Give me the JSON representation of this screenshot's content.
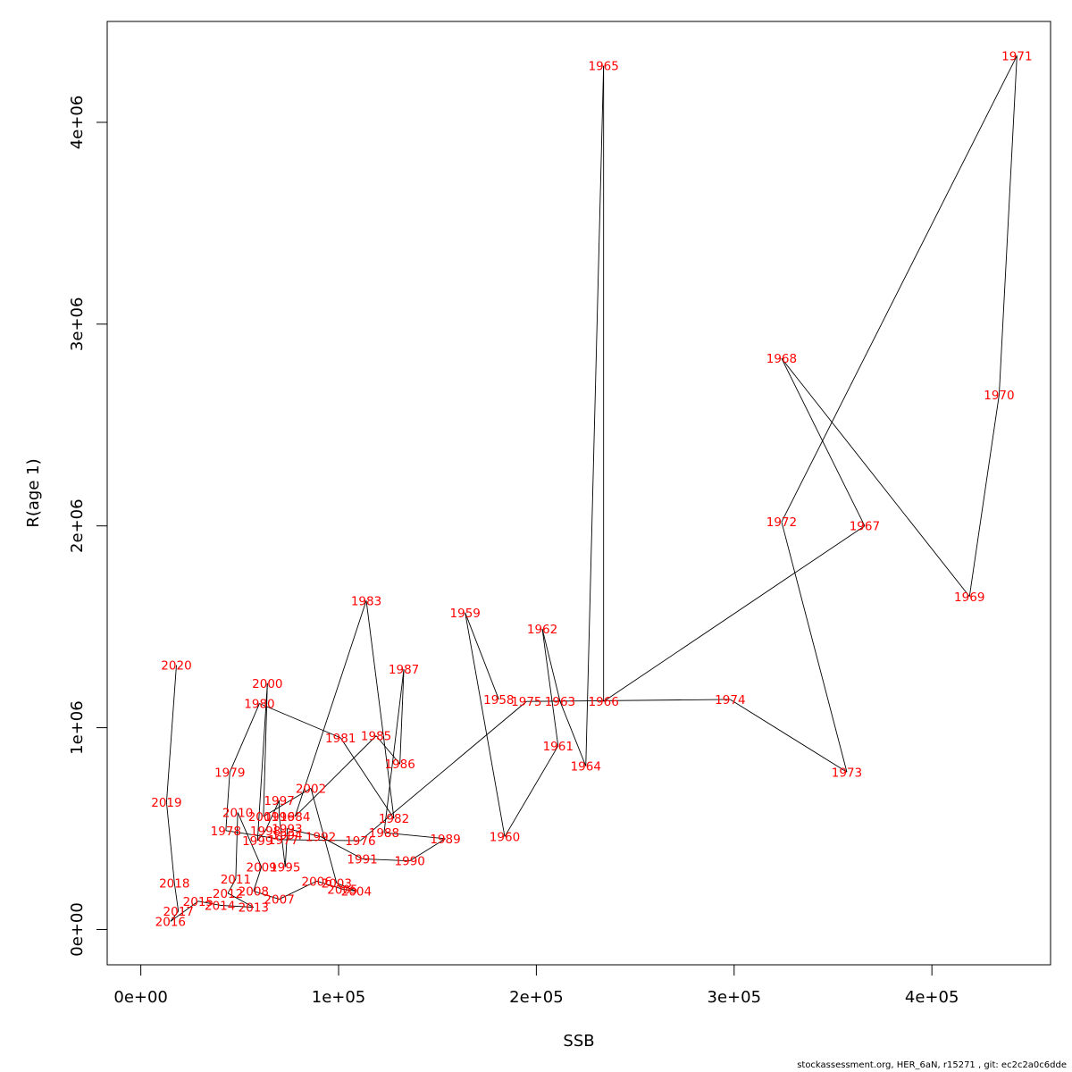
{
  "chart_data": {
    "type": "scatter",
    "xlabel": "SSB",
    "ylabel": "R(age 1)",
    "xlim": [
      -17000,
      460000
    ],
    "ylim": [
      -175000,
      4500000
    ],
    "x_ticks": [
      {
        "value": 0,
        "label": "0e+00"
      },
      {
        "value": 100000,
        "label": "1e+05"
      },
      {
        "value": 200000,
        "label": "2e+05"
      },
      {
        "value": 300000,
        "label": "3e+05"
      },
      {
        "value": 400000,
        "label": "4e+05"
      }
    ],
    "y_ticks": [
      {
        "value": 0,
        "label": "0e+00"
      },
      {
        "value": 1000000,
        "label": "1e+06"
      },
      {
        "value": 2000000,
        "label": "2e+06"
      },
      {
        "value": 3000000,
        "label": "3e+06"
      },
      {
        "value": 4000000,
        "label": "4e+06"
      }
    ],
    "line_color": "#000000",
    "label_color": "#ff0000",
    "points": [
      {
        "year": "1958",
        "ssb": 181000,
        "rec": 1140000
      },
      {
        "year": "1959",
        "ssb": 164000,
        "rec": 1570000
      },
      {
        "year": "1960",
        "ssb": 184000,
        "rec": 460000
      },
      {
        "year": "1961",
        "ssb": 211000,
        "rec": 910000
      },
      {
        "year": "1962",
        "ssb": 203000,
        "rec": 1490000
      },
      {
        "year": "1963",
        "ssb": 212000,
        "rec": 1130000
      },
      {
        "year": "1964",
        "ssb": 225000,
        "rec": 810000
      },
      {
        "year": "1965",
        "ssb": 234000,
        "rec": 4280000
      },
      {
        "year": "1966",
        "ssb": 234000,
        "rec": 1130000
      },
      {
        "year": "1967",
        "ssb": 366000,
        "rec": 2000000
      },
      {
        "year": "1968",
        "ssb": 324000,
        "rec": 2830000
      },
      {
        "year": "1969",
        "ssb": 419000,
        "rec": 1650000
      },
      {
        "year": "1970",
        "ssb": 434000,
        "rec": 2650000
      },
      {
        "year": "1971",
        "ssb": 443000,
        "rec": 4330000
      },
      {
        "year": "1972",
        "ssb": 324000,
        "rec": 2020000
      },
      {
        "year": "1973",
        "ssb": 357000,
        "rec": 780000
      },
      {
        "year": "1974",
        "ssb": 298000,
        "rec": 1140000
      },
      {
        "year": "1975",
        "ssb": 195000,
        "rec": 1130000
      },
      {
        "year": "1976",
        "ssb": 111000,
        "rec": 440000
      },
      {
        "year": "1977",
        "ssb": 72000,
        "rec": 445000
      },
      {
        "year": "1978",
        "ssb": 43000,
        "rec": 490000
      },
      {
        "year": "1979",
        "ssb": 45000,
        "rec": 780000
      },
      {
        "year": "1980",
        "ssb": 60000,
        "rec": 1120000
      },
      {
        "year": "1981",
        "ssb": 101000,
        "rec": 950000
      },
      {
        "year": "1982",
        "ssb": 128000,
        "rec": 550000
      },
      {
        "year": "1983",
        "ssb": 114000,
        "rec": 1630000
      },
      {
        "year": "1984",
        "ssb": 78000,
        "rec": 560000
      },
      {
        "year": "1985",
        "ssb": 119000,
        "rec": 960000
      },
      {
        "year": "1986",
        "ssb": 131000,
        "rec": 820000
      },
      {
        "year": "1987",
        "ssb": 133000,
        "rec": 1290000
      },
      {
        "year": "1988",
        "ssb": 123000,
        "rec": 480000
      },
      {
        "year": "1989",
        "ssb": 154000,
        "rec": 450000
      },
      {
        "year": "1990",
        "ssb": 136000,
        "rec": 340000
      },
      {
        "year": "1991",
        "ssb": 112000,
        "rec": 350000
      },
      {
        "year": "1992",
        "ssb": 91000,
        "rec": 460000
      },
      {
        "year": "1993",
        "ssb": 74000,
        "rec": 500000
      },
      {
        "year": "1994",
        "ssb": 74000,
        "rec": 470000
      },
      {
        "year": "1995",
        "ssb": 73000,
        "rec": 310000
      },
      {
        "year": "1996",
        "ssb": 70000,
        "rec": 560000
      },
      {
        "year": "1997",
        "ssb": 70000,
        "rec": 640000
      },
      {
        "year": "1998",
        "ssb": 63000,
        "rec": 490000
      },
      {
        "year": "1999",
        "ssb": 59000,
        "rec": 440000
      },
      {
        "year": "2000",
        "ssb": 64000,
        "rec": 1220000
      },
      {
        "year": "2001",
        "ssb": 62000,
        "rec": 560000
      },
      {
        "year": "2002",
        "ssb": 86000,
        "rec": 700000
      },
      {
        "year": "2003",
        "ssb": 99000,
        "rec": 230000
      },
      {
        "year": "2004",
        "ssb": 109000,
        "rec": 190000
      },
      {
        "year": "2005",
        "ssb": 102000,
        "rec": 200000
      },
      {
        "year": "2006",
        "ssb": 89000,
        "rec": 240000
      },
      {
        "year": "2007",
        "ssb": 70000,
        "rec": 150000
      },
      {
        "year": "2008",
        "ssb": 57000,
        "rec": 190000
      },
      {
        "year": "2009",
        "ssb": 61000,
        "rec": 310000
      },
      {
        "year": "2010",
        "ssb": 49000,
        "rec": 580000
      },
      {
        "year": "2011",
        "ssb": 48000,
        "rec": 250000
      },
      {
        "year": "2012",
        "ssb": 44000,
        "rec": 180000
      },
      {
        "year": "2013",
        "ssb": 57000,
        "rec": 110000
      },
      {
        "year": "2014",
        "ssb": 40000,
        "rec": 120000
      },
      {
        "year": "2015",
        "ssb": 29000,
        "rec": 140000
      },
      {
        "year": "2016",
        "ssb": 15000,
        "rec": 40000
      },
      {
        "year": "2017",
        "ssb": 19000,
        "rec": 90000
      },
      {
        "year": "2018",
        "ssb": 17000,
        "rec": 230000
      },
      {
        "year": "2019",
        "ssb": 13000,
        "rec": 630000
      },
      {
        "year": "2020",
        "ssb": 18000,
        "rec": 1310000
      }
    ]
  },
  "footer": "stockassessment.org, HER_6aN, r15271 , git: ec2c2a0c6dde"
}
